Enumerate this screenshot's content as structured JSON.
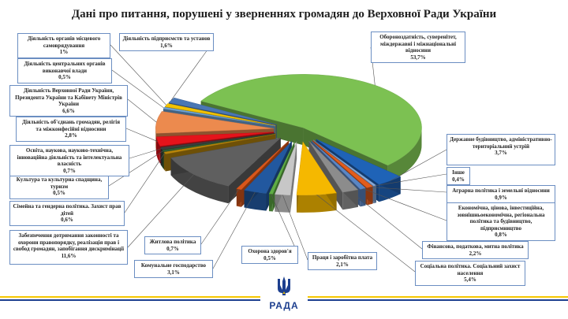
{
  "title": "Дані про питання, порушені у зверненнях громадян до Верховної Ради України",
  "logo_text": "РАДА",
  "colors": {
    "label_border": "#6b8ec2",
    "brand_blue": "#1d3f8f",
    "brand_yellow": "#f6c700"
  },
  "chart_data": {
    "type": "pie",
    "style": "3d-exploded",
    "slices": [
      {
        "label": "Обороноздатність, суверенітет, міждержавні і міжнаціональні відносини",
        "value": 53.7,
        "value_text": "53,7%",
        "color": "#7cc152"
      },
      {
        "label": "Державне будівництво, адміністративно-територіальний устрій",
        "value": 3.7,
        "value_text": "3,7%",
        "color": "#1f63b7"
      },
      {
        "label": "Інше",
        "value": 0.4,
        "value_text": "0,4%",
        "color": "#86a9d8"
      },
      {
        "label": "Аграрна політика і земельні відносини",
        "value": 0.9,
        "value_text": "0,9%",
        "color": "#e35c1c"
      },
      {
        "label": "Економічна, цінова, інвестиційна, зовнішньоекономічна, регіональна політика та будівництво, підприємництво",
        "value": 0.8,
        "value_text": "0,8%",
        "color": "#5b86c4"
      },
      {
        "label": "Фінансова, податкова, митна політика",
        "value": 2.2,
        "value_text": "2,2%",
        "color": "#8c8c8c"
      },
      {
        "label": "Соціальна політика. Соціальний захист населення",
        "value": 5.4,
        "value_text": "5,4%",
        "color": "#f5b800"
      },
      {
        "label": "Праця і заробітна плата",
        "value": 2.1,
        "value_text": "2,1%",
        "color": "#c7c7c7"
      },
      {
        "label": "Охорона здоров'я",
        "value": 0.5,
        "value_text": "0,5%",
        "color": "#5fad45"
      },
      {
        "label": "Комунальне господарство",
        "value": 3.1,
        "value_text": "3,1%",
        "color": "#22589f"
      },
      {
        "label": "Житлова політика",
        "value": 0.7,
        "value_text": "0,7%",
        "color": "#d9561a"
      },
      {
        "label": "Забезпечення дотримання законності та охорони правопорядку, реалізація прав і свобод громадян, запобігання дискримінації",
        "value": 11.6,
        "value_text": "11,6%",
        "color": "#5f5f5f"
      },
      {
        "label": "Сімейна та гендерна політика. Захист прав дітей",
        "value": 0.6,
        "value_text": "0,6%",
        "color": "#b8860b"
      },
      {
        "label": "Культура та культурна спадщина, туризм",
        "value": 0.5,
        "value_text": "0,5%",
        "color": "#2e5e35"
      },
      {
        "label": "Освіта, наукова, науково-технічна, інноваційна діяльність та інтелектуальна власність",
        "value": 0.7,
        "value_text": "0,7%",
        "color": "#3d3d3d"
      },
      {
        "label": "Діяльність об'єднань громадян, релігія та міжконфесійні відносини",
        "value": 2.8,
        "value_text": "2,8%",
        "color": "#e5131b"
      },
      {
        "label": "Діяльність Верховної Ради України, Президента України та Кабінету Міністрів України",
        "value": 6.6,
        "value_text": "6,6%",
        "color": "#ec8a4e"
      },
      {
        "label": "Діяльність центральних органів виконавчої влади",
        "value": 0.5,
        "value_text": "0,5%",
        "color": "#6fa5d8"
      },
      {
        "label": "Діяльність органів місцевого самоврядування",
        "value": 1,
        "value_text": "1%",
        "color": "#f2c200"
      },
      {
        "label": "Діяльність підприємств та установ",
        "value": 1.6,
        "value_text": "1,6%",
        "color": "#4a77b4"
      }
    ]
  }
}
